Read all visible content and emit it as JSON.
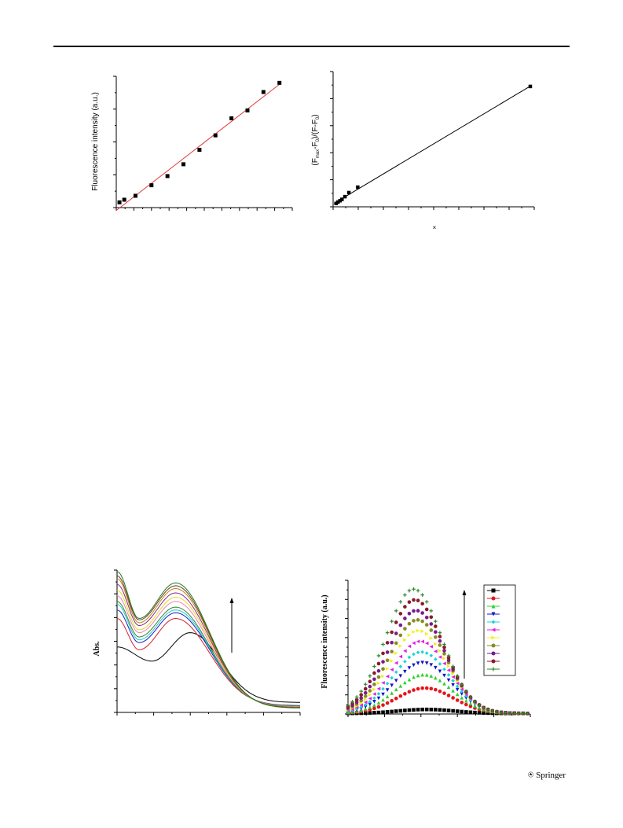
{
  "page": {
    "publisher": "Springer"
  },
  "chart_data": [
    {
      "id": "fig-a",
      "type": "scatter",
      "ylabel": "Fluorescence intensity (a.u.)",
      "marker": "square",
      "fit_line": true,
      "fit_color": "#e23b3b",
      "xlim": [
        0,
        11
      ],
      "ylim": [
        0,
        100
      ],
      "series": [
        {
          "x": [
            0.2,
            0.5,
            1.2,
            2.2,
            3.2,
            4.2,
            5.2,
            6.2,
            7.2,
            8.2,
            9.2,
            10.2
          ],
          "y": [
            4,
            6,
            9,
            17,
            24,
            33,
            44,
            55,
            68,
            74,
            88,
            95
          ]
        }
      ]
    },
    {
      "id": "fig-b",
      "type": "scatter",
      "ylabel_parts": [
        "(F",
        "max",
        "-F",
        "0",
        ")/(F-F",
        "0",
        ")"
      ],
      "xlabel": "×",
      "marker": "square",
      "fit_line": true,
      "fit_color": "#000000",
      "xlim": [
        0,
        100
      ],
      "ylim": [
        0,
        100
      ],
      "series": [
        {
          "x": [
            1.5,
            2.5,
            3.5,
            4.5,
            6,
            8,
            12.5,
            100
          ],
          "y": [
            2.5,
            3.5,
            4.5,
            5.5,
            7.5,
            10.5,
            14.5,
            89
          ]
        }
      ]
    },
    {
      "id": "fig-c",
      "type": "line",
      "ylabel": "Abs.",
      "arrow": "up",
      "xlim": [
        0,
        100
      ],
      "ylim": [
        0,
        100
      ],
      "series": [
        {
          "color": "#000000",
          "peak": 56,
          "side": 46,
          "trough": 36
        },
        {
          "color": "#d6202a",
          "peak": 66,
          "side": 58,
          "trough": 44
        },
        {
          "color": "#1a1acc",
          "peak": 70,
          "side": 64,
          "trough": 49
        },
        {
          "color": "#22cccc",
          "peak": 72,
          "side": 68,
          "trough": 51
        },
        {
          "color": "#2a8a2a",
          "peak": 74,
          "side": 70,
          "trough": 53
        },
        {
          "color": "#ff7ab0",
          "peak": 78,
          "side": 74,
          "trough": 56
        },
        {
          "color": "#dddd22",
          "peak": 81,
          "side": 78,
          "trough": 58
        },
        {
          "color": "#8a2a8a",
          "peak": 84,
          "side": 82,
          "trough": 61
        },
        {
          "color": "#b8860b",
          "peak": 87,
          "side": 86,
          "trough": 63
        },
        {
          "color": "#6b3a2a",
          "peak": 89,
          "side": 88,
          "trough": 65
        },
        {
          "color": "#1e7a1e",
          "peak": 91,
          "side": 91,
          "trough": 66
        }
      ]
    },
    {
      "id": "fig-d",
      "type": "scatter",
      "ylabel": "Fluorescence intensity (a.u.)",
      "arrow": "up",
      "legend": "top-right",
      "xlim": [
        0,
        100
      ],
      "ylim": [
        0,
        100
      ],
      "series": [
        {
          "color": "#000000",
          "marker": "square",
          "peak": 3
        },
        {
          "color": "#e8131a",
          "marker": "circle",
          "peak": 19
        },
        {
          "color": "#2ed12e",
          "marker": "triangle-up",
          "peak": 29
        },
        {
          "color": "#1515c9",
          "marker": "triangle-down",
          "peak": 38
        },
        {
          "color": "#16d6d6",
          "marker": "diamond",
          "peak": 46
        },
        {
          "color": "#e41fe4",
          "marker": "triangle-left",
          "peak": 54
        },
        {
          "color": "#f0f020",
          "marker": "triangle-right",
          "peak": 62
        },
        {
          "color": "#8a8a20",
          "marker": "circle",
          "peak": 70
        },
        {
          "color": "#7a1a8a",
          "marker": "circle",
          "peak": 77
        },
        {
          "color": "#8a1a2a",
          "marker": "circle",
          "peak": 85
        },
        {
          "color": "#2a8a2a",
          "marker": "plus",
          "peak": 93
        }
      ]
    }
  ]
}
